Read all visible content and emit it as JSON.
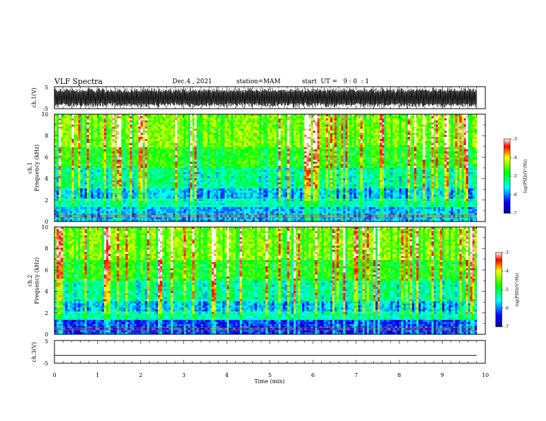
{
  "header": {
    "title": "VLF Spectra",
    "date": "Dec.4 , 2021",
    "station": "station=MAM",
    "start": "start  UT =   9 : 0  : 1"
  },
  "chart_data": [
    {
      "type": "line",
      "panel": "waveform-ch1",
      "ylabel": "ch.1(V)",
      "ylim": [
        -5,
        5
      ],
      "yticks": [
        "5",
        "-5"
      ],
      "xlim": [
        0,
        10
      ],
      "description_free": true,
      "signal": "dense oscillating waveform spanning nearly full range"
    },
    {
      "type": "heatmap",
      "panel": "spectrogram-ch1",
      "ylabel": "ch.1\nFrequency (kHz)",
      "ylabel_line1": "ch.1",
      "ylabel_line2": "Frequency (kHz)",
      "ylim": [
        0,
        10
      ],
      "yticks": [
        "0",
        "2",
        "4",
        "6",
        "8",
        "10"
      ],
      "xlim": [
        0,
        10
      ],
      "colorbar": {
        "label": "log(PSD)(V²/Hz)",
        "range": [
          -7,
          -3
        ],
        "ticks": [
          "-3",
          "-4",
          "-5",
          "-6",
          "-7"
        ]
      }
    },
    {
      "type": "heatmap",
      "panel": "spectrogram-ch2",
      "ylabel_line1": "ch.2",
      "ylabel_line2": "Frequency (kHz)",
      "ylim": [
        0,
        10
      ],
      "yticks": [
        "0",
        "2",
        "4",
        "6",
        "8",
        "10"
      ],
      "xlim": [
        0,
        10
      ],
      "colorbar": {
        "label": "log(PSD)(V²/Hz)",
        "range": [
          -7,
          -3
        ],
        "ticks": [
          "-3",
          "-4",
          "-5",
          "-6",
          "-7"
        ]
      }
    },
    {
      "type": "line",
      "panel": "waveform-ch3",
      "ylabel": "ch.3(V)",
      "ylim": [
        -5,
        5
      ],
      "yticks": [
        "5",
        "-5"
      ],
      "xlim": [
        0,
        10
      ],
      "x": [
        0,
        9.8
      ],
      "y": [
        -1.5,
        -1.5
      ]
    }
  ],
  "xaxis": {
    "label": "Time  (min)",
    "ticks": [
      "0",
      "1",
      "2",
      "3",
      "4",
      "5",
      "6",
      "7",
      "8",
      "9",
      "10"
    ]
  }
}
